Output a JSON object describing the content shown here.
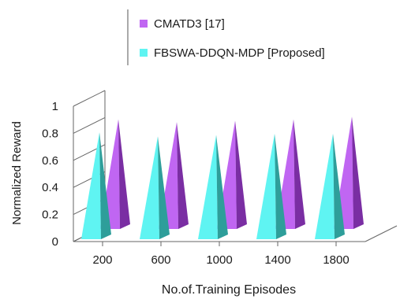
{
  "chart_data": {
    "type": "bar",
    "bar_shape": "3d-pyramid",
    "categories": [
      "200",
      "600",
      "1000",
      "1400",
      "1800"
    ],
    "series": [
      {
        "name": "CMATD3 [17]",
        "values": [
          0.81,
          0.79,
          0.8,
          0.81,
          0.83
        ],
        "color": "#c066f2",
        "side_color": "#7a2ea3"
      },
      {
        "name": "FBSWA-DDQN-MDP [Proposed]",
        "values": [
          0.79,
          0.76,
          0.77,
          0.78,
          0.78
        ],
        "color": "#5ff4f2",
        "side_color": "#2e9e9a"
      }
    ],
    "title": "",
    "xlabel": "No.of.Training Episodes",
    "ylabel": "Normalized Reward",
    "ylim": [
      0,
      1
    ],
    "yticks": [
      "0",
      "0.2",
      "0.4",
      "0.6",
      "0.8",
      "1"
    ],
    "grid": false,
    "legend_position": "top-right"
  }
}
